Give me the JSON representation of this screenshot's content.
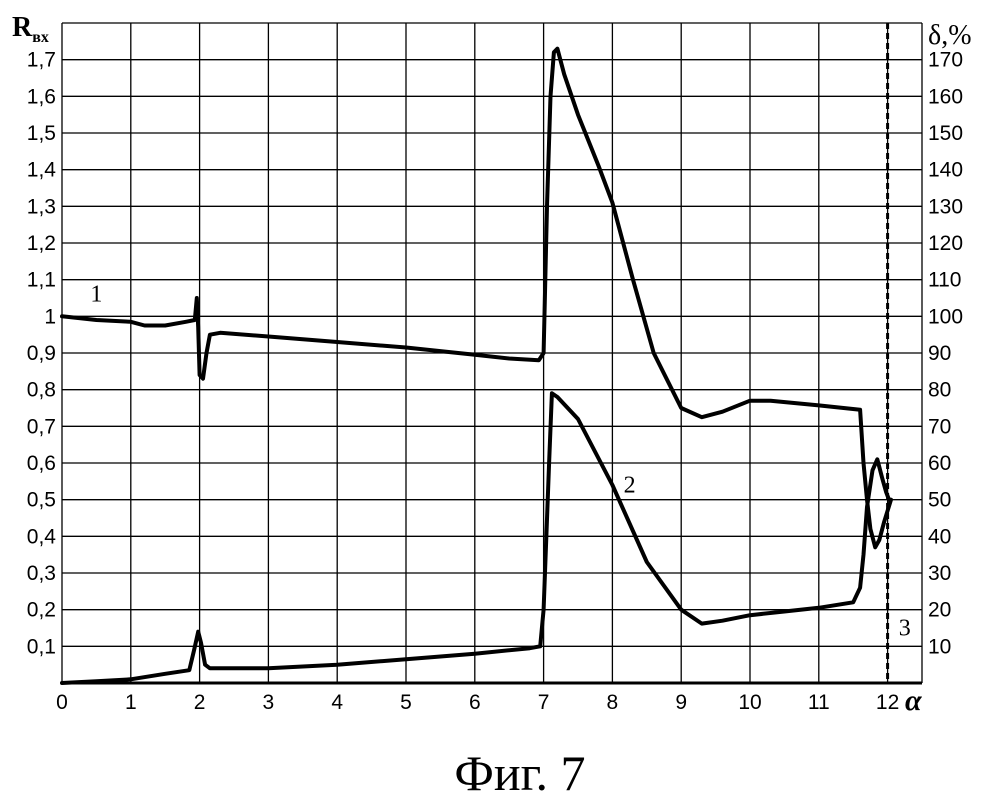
{
  "chart_data": {
    "type": "line",
    "caption": "Фиг. 7",
    "xlabel": "α",
    "ylabel_left": "Rвх",
    "ylabel_left_main": "R",
    "ylabel_left_sub": "вх",
    "ylabel_right": "δ,%",
    "xlim": [
      0,
      12.5
    ],
    "ylim_left": [
      0,
      1.8
    ],
    "ylim_right": [
      0,
      180
    ],
    "grid": true,
    "x_ticks": [
      "0",
      "1",
      "2",
      "3",
      "4",
      "5",
      "6",
      "7",
      "8",
      "9",
      "10",
      "11",
      "12"
    ],
    "y_left_ticks": [
      "0,1",
      "0,2",
      "0,3",
      "0,4",
      "0,5",
      "0,6",
      "0,7",
      "0,8",
      "0,9",
      "1",
      "1,1",
      "1,2",
      "1,3",
      "1,4",
      "1,5",
      "1,6",
      "1,7"
    ],
    "y_right_ticks": [
      "10",
      "20",
      "30",
      "40",
      "50",
      "60",
      "70",
      "80",
      "90",
      "100",
      "110",
      "120",
      "130",
      "140",
      "150",
      "160",
      "170"
    ],
    "series": [
      {
        "name": "1",
        "axis": "left",
        "points": [
          [
            0,
            1.0
          ],
          [
            0.5,
            0.99
          ],
          [
            1.0,
            0.985
          ],
          [
            1.2,
            0.975
          ],
          [
            1.5,
            0.975
          ],
          [
            1.8,
            0.985
          ],
          [
            1.93,
            0.99
          ],
          [
            1.96,
            1.05
          ],
          [
            1.98,
            0.97
          ],
          [
            2.0,
            0.84
          ],
          [
            2.05,
            0.83
          ],
          [
            2.1,
            0.9
          ],
          [
            2.15,
            0.95
          ],
          [
            2.3,
            0.955
          ],
          [
            3.0,
            0.945
          ],
          [
            4.0,
            0.93
          ],
          [
            5.0,
            0.915
          ],
          [
            6.0,
            0.895
          ],
          [
            6.5,
            0.885
          ],
          [
            6.93,
            0.88
          ],
          [
            7.0,
            0.9
          ],
          [
            7.05,
            1.3
          ],
          [
            7.1,
            1.6
          ],
          [
            7.15,
            1.72
          ],
          [
            7.2,
            1.73
          ],
          [
            7.3,
            1.66
          ],
          [
            7.5,
            1.55
          ],
          [
            7.8,
            1.41
          ],
          [
            8.0,
            1.31
          ],
          [
            8.3,
            1.1
          ],
          [
            8.6,
            0.9
          ],
          [
            9.0,
            0.75
          ],
          [
            9.3,
            0.725
          ],
          [
            9.6,
            0.74
          ],
          [
            10.0,
            0.77
          ],
          [
            10.3,
            0.77
          ],
          [
            11.0,
            0.757
          ],
          [
            11.6,
            0.745
          ],
          [
            11.65,
            0.6
          ],
          [
            11.7,
            0.5
          ],
          [
            11.75,
            0.42
          ],
          [
            11.82,
            0.37
          ],
          [
            11.88,
            0.39
          ],
          [
            11.95,
            0.44
          ],
          [
            12.0,
            0.47
          ],
          [
            12.05,
            0.5
          ]
        ]
      },
      {
        "name": "2",
        "axis": "left",
        "points": [
          [
            0,
            0.0
          ],
          [
            0.5,
            0.005
          ],
          [
            1.0,
            0.01
          ],
          [
            1.5,
            0.025
          ],
          [
            1.85,
            0.035
          ],
          [
            1.92,
            0.09
          ],
          [
            1.98,
            0.14
          ],
          [
            2.02,
            0.11
          ],
          [
            2.08,
            0.05
          ],
          [
            2.15,
            0.04
          ],
          [
            3.0,
            0.04
          ],
          [
            4.0,
            0.05
          ],
          [
            5.0,
            0.065
          ],
          [
            6.0,
            0.08
          ],
          [
            6.8,
            0.095
          ],
          [
            6.95,
            0.1
          ],
          [
            7.0,
            0.2
          ],
          [
            7.08,
            0.6
          ],
          [
            7.12,
            0.79
          ],
          [
            7.2,
            0.78
          ],
          [
            7.5,
            0.72
          ],
          [
            8.0,
            0.54
          ],
          [
            8.5,
            0.33
          ],
          [
            9.0,
            0.2
          ],
          [
            9.3,
            0.162
          ],
          [
            9.6,
            0.17
          ],
          [
            10.0,
            0.185
          ],
          [
            10.5,
            0.195
          ],
          [
            11.0,
            0.205
          ],
          [
            11.5,
            0.22
          ],
          [
            11.6,
            0.26
          ],
          [
            11.65,
            0.35
          ],
          [
            11.7,
            0.48
          ],
          [
            11.78,
            0.58
          ],
          [
            11.85,
            0.61
          ],
          [
            11.92,
            0.56
          ],
          [
            11.98,
            0.52
          ],
          [
            12.02,
            0.5
          ]
        ]
      }
    ],
    "annotations": [
      {
        "text": "1",
        "x": 0.5,
        "y": 1.04
      },
      {
        "text": "2",
        "x": 8.25,
        "y": 0.52
      },
      {
        "text": "3",
        "x": 12.25,
        "y": 0.13
      }
    ],
    "vertical_line": {
      "x": 12.0,
      "style": "dashed",
      "label": "3"
    }
  }
}
